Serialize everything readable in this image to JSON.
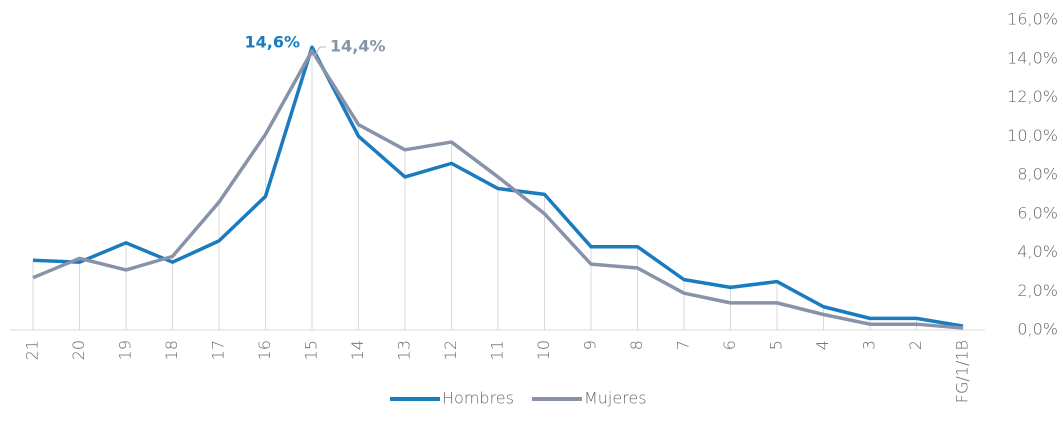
{
  "chart_data": {
    "type": "line",
    "categories": [
      "21",
      "20",
      "19",
      "18",
      "17",
      "16",
      "15",
      "14",
      "13",
      "12",
      "11",
      "10",
      "9",
      "8",
      "7",
      "6",
      "5",
      "4",
      "3",
      "2",
      "FG/1/1B"
    ],
    "series": [
      {
        "name": "Hombres",
        "color": "#1a7bbf",
        "values": [
          3.6,
          3.5,
          4.5,
          3.5,
          4.6,
          6.9,
          14.6,
          10.0,
          7.9,
          8.6,
          7.3,
          7.0,
          4.3,
          4.3,
          2.6,
          2.2,
          2.5,
          1.2,
          0.6,
          0.6,
          0.2
        ]
      },
      {
        "name": "Mujeres",
        "color": "#8892a8",
        "values": [
          2.7,
          3.7,
          3.1,
          3.8,
          6.6,
          10.1,
          14.4,
          10.6,
          9.3,
          9.7,
          7.9,
          6.0,
          3.4,
          3.2,
          1.9,
          1.4,
          1.4,
          0.8,
          0.3,
          0.3,
          0.1
        ]
      }
    ],
    "annotations": [
      "14,6%",
      "14,4%"
    ],
    "ylim": [
      0,
      16
    ],
    "yticks": [
      {
        "value": 0,
        "label": "0,0%"
      },
      {
        "value": 2,
        "label": "2,0%"
      },
      {
        "value": 4,
        "label": "4,0%"
      },
      {
        "value": 6,
        "label": "6,0%"
      },
      {
        "value": 8,
        "label": "8,0%"
      },
      {
        "value": 10,
        "label": "10,0%"
      },
      {
        "value": 12,
        "label": "12,0%"
      },
      {
        "value": 14,
        "label": "14,0%"
      },
      {
        "value": 16,
        "label": "16,0%"
      }
    ],
    "legend": "bottom"
  }
}
